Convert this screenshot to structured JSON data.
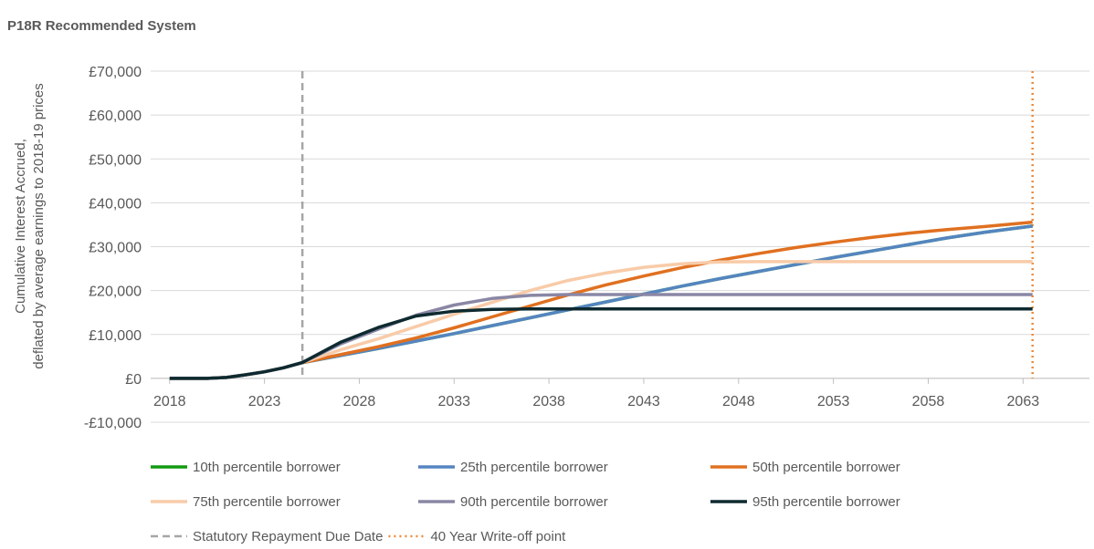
{
  "chart_data": {
    "type": "line",
    "title": "P18R Recommended System",
    "ylabel": [
      "Cumulative Interest Accrued,",
      "deflated by average earnings to 2018-19 prices"
    ],
    "x": [
      2018,
      2019,
      2020,
      2021,
      2022,
      2023,
      2024,
      2025,
      2027,
      2029,
      2031,
      2033,
      2035,
      2037,
      2039,
      2041,
      2043,
      2045,
      2047,
      2049,
      2051,
      2053,
      2055,
      2057,
      2059,
      2061,
      2063.5
    ],
    "series": [
      {
        "name": "10th percentile borrower",
        "color": "#109a10",
        "values": [
          0,
          0,
          0,
          200,
          800,
          1500,
          2400,
          3600,
          5200,
          6800,
          8500,
          10200,
          12000,
          13800,
          15600,
          17400,
          19200,
          21000,
          22700,
          24300,
          25900,
          27500,
          29000,
          30500,
          32000,
          33300,
          34700
        ]
      },
      {
        "name": "25th percentile borrower",
        "color": "#5585c0",
        "values": [
          0,
          0,
          0,
          200,
          800,
          1500,
          2400,
          3600,
          5200,
          6800,
          8500,
          10200,
          12000,
          13800,
          15600,
          17400,
          19200,
          21000,
          22700,
          24300,
          25900,
          27500,
          29000,
          30500,
          32000,
          33300,
          34700
        ]
      },
      {
        "name": "50th percentile borrower",
        "color": "#e07020",
        "values": [
          0,
          0,
          0,
          200,
          800,
          1500,
          2400,
          3600,
          5400,
          7200,
          9200,
          11500,
          14000,
          16500,
          19000,
          21300,
          23300,
          25200,
          26900,
          28400,
          29800,
          31000,
          32100,
          33100,
          33900,
          34600,
          35600
        ]
      },
      {
        "name": "75th percentile borrower",
        "color": "#f8cba8",
        "values": [
          0,
          0,
          0,
          200,
          800,
          1500,
          2400,
          3600,
          6500,
          9000,
          11800,
          14600,
          17300,
          20000,
          22300,
          24000,
          25300,
          26100,
          26500,
          26600,
          26600,
          26600,
          26600,
          26600,
          26600,
          26600,
          26600
        ]
      },
      {
        "name": "90th percentile borrower",
        "color": "#8a87a5",
        "values": [
          0,
          0,
          0,
          200,
          800,
          1500,
          2400,
          3600,
          7800,
          11200,
          14400,
          16700,
          18200,
          18900,
          19100,
          19100,
          19100,
          19100,
          19100,
          19100,
          19100,
          19100,
          19100,
          19100,
          19100,
          19100,
          19100
        ]
      },
      {
        "name": "95th percentile borrower",
        "color": "#0e2a30",
        "values": [
          0,
          0,
          0,
          200,
          800,
          1500,
          2400,
          3600,
          8200,
          11600,
          14200,
          15300,
          15700,
          15800,
          15800,
          15800,
          15800,
          15800,
          15800,
          15800,
          15800,
          15800,
          15800,
          15800,
          15800,
          15800,
          15800
        ]
      }
    ],
    "reference_lines": [
      {
        "name": "Statutory Repayment Due Date",
        "x": 2025,
        "color": "#a6a6a6",
        "style": "dashed"
      },
      {
        "name": "40 Year Write-off point",
        "x": 2063.5,
        "color": "#ed8a3a",
        "style": "dotted"
      }
    ],
    "xlim": [
      2017,
      2066.5
    ],
    "xticks": [
      2018,
      2023,
      2028,
      2033,
      2038,
      2043,
      2048,
      2053,
      2058,
      2063
    ],
    "ylim": [
      -10000,
      70000
    ],
    "yticks": [
      {
        "value": -10000,
        "label": "-£10,000"
      },
      {
        "value": 0,
        "label": "£0"
      },
      {
        "value": 10000,
        "label": "£10,000"
      },
      {
        "value": 20000,
        "label": "£20,000"
      },
      {
        "value": 30000,
        "label": "£30,000"
      },
      {
        "value": 40000,
        "label": "£40,000"
      },
      {
        "value": 50000,
        "label": "£50,000"
      },
      {
        "value": 60000,
        "label": "£60,000"
      },
      {
        "value": 70000,
        "label": "£70,000"
      }
    ],
    "grid": true
  }
}
